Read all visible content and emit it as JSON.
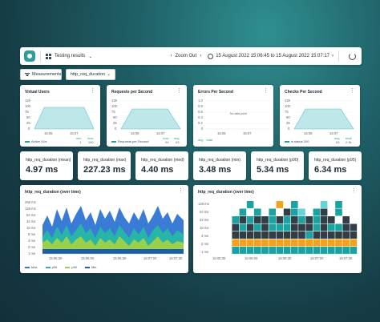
{
  "toolbar": {
    "app_menu_label": "Testing results",
    "zoom_label": "Zoom Out",
    "time_range": "15 August 2022 15:06:45 to 15 August 2022 15:07:17"
  },
  "filters": {
    "measurements_label": "Measurements",
    "metric_select": "http_req_duration"
  },
  "panels": {
    "vus": {
      "title": "Virtual Users",
      "yticks": [
        "125",
        "100",
        "75",
        "50",
        "25",
        "0"
      ],
      "xticks": [
        "15:06",
        "15:07"
      ],
      "legend": "Active VUs",
      "stat_labels": [
        "min",
        "max"
      ],
      "stat_values": [
        "1",
        "100"
      ]
    },
    "rps": {
      "title": "Requests per Second",
      "yticks": [
        "125",
        "100",
        "75",
        "50",
        "25",
        "0"
      ],
      "xticks": [
        "15:06",
        "15:07"
      ],
      "legend": "Requests per Second",
      "stat_labels": [
        "max",
        "avg"
      ],
      "stat_values": [
        "94",
        "63"
      ]
    },
    "eps": {
      "title": "Errors Per Second",
      "yticks": [
        "1.0",
        "0.8",
        "0.6",
        "0.4",
        "0.2",
        "0"
      ],
      "xticks": [
        "15:06",
        "15:07"
      ],
      "no_data": "No data point",
      "stat_labels": [
        "avg",
        "total"
      ]
    },
    "cps": {
      "title": "Checks Per Second",
      "yticks": [
        "125",
        "100",
        "75",
        "50",
        "25",
        "0"
      ],
      "xticks": [
        "15:06",
        "15:07"
      ],
      "legend": "is status 200",
      "stat_labels": [
        "avg",
        "total"
      ],
      "stat_values": [
        "63",
        "2.9k"
      ]
    }
  },
  "stats": [
    {
      "title": "http_req_duration (mean)",
      "value": "4.97 ms"
    },
    {
      "title": "http_req_duration (max)",
      "value": "227.23 ms"
    },
    {
      "title": "http_req_duration (med)",
      "value": "4.40 ms"
    },
    {
      "title": "http_req_duration (min)",
      "value": "3.48 ms"
    },
    {
      "title": "http_req_duration (p90)",
      "value": "5.34 ms"
    },
    {
      "title": "http_req_duration (p95)",
      "value": "6.34 ms"
    }
  ],
  "timeseries": {
    "title": "http_req_duration (over time)",
    "yticks": [
      "256 ms",
      "128 ms",
      "64 ms",
      "32 ms",
      "16 ms",
      "8 ms",
      "4 ms",
      "2 ms",
      "1 ms"
    ],
    "xticks": [
      "15:05:30",
      "15:06:00",
      "15:06:30",
      "15:07:00",
      "15:07:30"
    ],
    "legend": [
      "Max",
      "p95",
      "p90",
      "Min"
    ],
    "colors": [
      "#3a7bd5",
      "#26b5a8",
      "#9ad04a",
      "#1d5fa8"
    ]
  },
  "heatmap": {
    "title": "http_req_duration (over time)",
    "yticks": [
      "128 ms",
      "64 ms",
      "32 ms",
      "16 ms",
      "4 ms",
      "2 ms",
      "1 ms"
    ],
    "xticks": [
      "15:05:30",
      "15:06:00",
      "15:06:30",
      "15:07:00",
      "15:07:30"
    ],
    "colors": [
      "#2f3e47",
      "#1aa3a0",
      "#f3a21b",
      "#66d3d6"
    ]
  },
  "colors": {
    "accent": "#2f9e98",
    "chart_fill": "#bfe7ea",
    "chart_line": "#5cc6cc"
  }
}
